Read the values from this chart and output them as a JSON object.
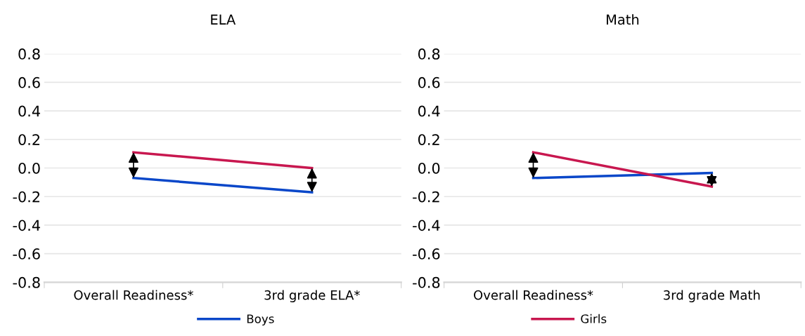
{
  "chart_data": [
    {
      "type": "line",
      "title": "ELA",
      "categories": [
        "Overall Readiness*",
        "3rd grade ELA*"
      ],
      "series": [
        {
          "name": "Boys",
          "color": "#0a47c9",
          "values": [
            -0.07,
            -0.17
          ]
        },
        {
          "name": "Girls",
          "color": "#c8174f",
          "values": [
            0.11,
            0.0
          ]
        }
      ],
      "ylim": [
        -0.8,
        0.8
      ],
      "yticks": [
        {
          "value": -0.8,
          "label": "-0.8"
        },
        {
          "value": -0.6,
          "label": "-0.6"
        },
        {
          "value": -0.4,
          "label": "-0.4"
        },
        {
          "value": -0.2,
          "label": "-0.2"
        },
        {
          "value": 0,
          "label": "0.0"
        },
        {
          "value": 0.2,
          "label": "0.2"
        },
        {
          "value": 0.4,
          "label": "0.4"
        },
        {
          "value": 0.6,
          "label": "0.6"
        },
        {
          "value": 0.8,
          "label": "0.8"
        }
      ],
      "grid": "y",
      "legend": "bottom",
      "marker": "none"
    },
    {
      "type": "line",
      "title": "Math",
      "categories": [
        "Overall Readiness*",
        "3rd grade Math"
      ],
      "series": [
        {
          "color": "#0a47c9",
          "values": [
            -0.07,
            -0.035
          ]
        },
        {
          "color": "#c8174f",
          "values": [
            0.11,
            -0.13
          ]
        }
      ],
      "ylim": [
        -0.8,
        0.8
      ],
      "yticks": [
        {
          "value": -0.8,
          "label": "-0.8"
        },
        {
          "value": -0.6,
          "label": "-0.6"
        },
        {
          "value": -0.4,
          "label": "-0.4"
        },
        {
          "value": -0.2,
          "label": "-0.2"
        },
        {
          "value": 0,
          "label": "0.0"
        },
        {
          "value": 0.2,
          "label": "0.2"
        },
        {
          "value": 0.4,
          "label": "0.4"
        },
        {
          "value": 0.6,
          "label": "0.6"
        },
        {
          "value": 0.8,
          "label": "0.8"
        }
      ],
      "grid": "y",
      "marker": "none"
    }
  ]
}
